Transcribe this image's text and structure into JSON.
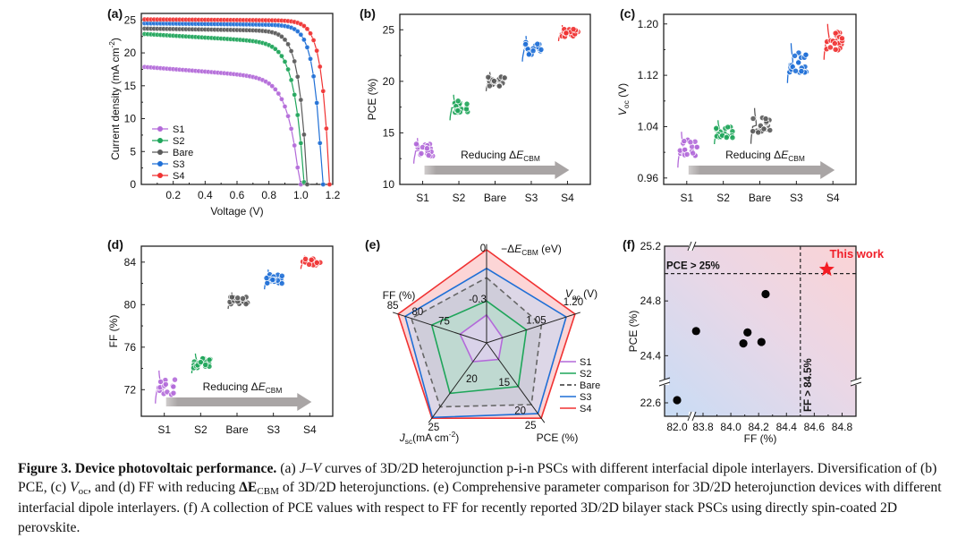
{
  "figure": {
    "caption_runs": [
      {
        "t": "Figure 3. Device photovoltaic performance.",
        "b": true
      },
      {
        "t": " (a) ",
        "b": false
      },
      {
        "t": "J–V",
        "b": false,
        "i": true
      },
      {
        "t": " curves of 3D/2D heterojunction p-i-n PSCs with different interfacial dipole interlayers. Diversification of (b) PCE, (c) ",
        "b": false
      },
      {
        "t": "V",
        "b": false,
        "i": true
      },
      {
        "t": "oc",
        "b": false,
        "sub": true
      },
      {
        "t": ", and (d) FF with reducing ",
        "b": false
      },
      {
        "t": "ΔE",
        "b": true
      },
      {
        "t": "CBM",
        "b": false,
        "sub": true
      },
      {
        "t": " of 3D/2D heterojunctions. (e) Comprehensive parameter comparison for 3D/2D heterojunction devices with different interfacial dipole interlayers. (f) A collection of PCE values with respect to FF for recently reported 3D/2D bilayer stack PSCs using directly spin-coated 2D perovskite.",
        "b": false
      }
    ]
  },
  "colors": {
    "S1": "#b36ad9",
    "S2": "#1fa55a",
    "Bare": "#5a5a5a",
    "S3": "#1f6fd6",
    "S4": "#f03232",
    "arrow": "#a8a4a4"
  },
  "chart_data": [
    {
      "panel": "(a)",
      "type": "line",
      "xlabel": "Voltage (V)",
      "ylabel": "Current density (mA cm⁻²)",
      "xlim": [
        0,
        1.2
      ],
      "ylim": [
        0,
        26
      ],
      "xticks": [
        "0.2",
        "0.4",
        "0.6",
        "0.8",
        "1.0",
        "1.2"
      ],
      "yticks": [
        "0",
        "5",
        "10",
        "15",
        "20",
        "25"
      ],
      "legend": "bottom-left",
      "series": [
        {
          "name": "S1",
          "jsc": 17.9,
          "voc": 1.0,
          "knee": 0.82,
          "slope": 2.6
        },
        {
          "name": "S2",
          "jsc": 22.9,
          "voc": 1.025,
          "knee": 0.84,
          "slope": 1.6
        },
        {
          "name": "Bare",
          "jsc": 23.7,
          "voc": 1.04,
          "knee": 0.88,
          "slope": 0.4
        },
        {
          "name": "S3",
          "jsc": 24.5,
          "voc": 1.135,
          "knee": 0.98,
          "slope": 0.3
        },
        {
          "name": "S4",
          "jsc": 25.1,
          "voc": 1.18,
          "knee": 1.03,
          "slope": 0.2
        }
      ]
    },
    {
      "panel": "(b)",
      "type": "scatter",
      "ylabel": "PCE (%)",
      "categories": [
        "S1",
        "S2",
        "Bare",
        "S3",
        "S4"
      ],
      "ylim": [
        10,
        26.5
      ],
      "yticks": [
        "10",
        "15",
        "20",
        "25"
      ],
      "annotation": "Reducing ΔE",
      "annotation_sub": "CBM",
      "series": [
        {
          "name": "S1",
          "mean": 13.3,
          "spread": 0.8
        },
        {
          "name": "S2",
          "mean": 17.5,
          "spread": 0.8
        },
        {
          "name": "Bare",
          "mean": 20.0,
          "spread": 0.6
        },
        {
          "name": "S3",
          "mean": 23.2,
          "spread": 0.8
        },
        {
          "name": "S4",
          "mean": 24.7,
          "spread": 0.5
        }
      ]
    },
    {
      "panel": "(c)",
      "type": "scatter",
      "ylabel": "V",
      "ylabel_sub": "oc",
      "ylabel_suffix": " (V)",
      "categories": [
        "S1",
        "S2",
        "Bare",
        "S3",
        "S4"
      ],
      "ylim": [
        0.95,
        1.215
      ],
      "yticks": [
        "0.96",
        "1.04",
        "1.12",
        "1.20"
      ],
      "annotation": "Reducing ΔE",
      "annotation_sub": "CBM",
      "series": [
        {
          "name": "S1",
          "mean": 1.005,
          "spread": 0.018
        },
        {
          "name": "S2",
          "mean": 1.032,
          "spread": 0.012
        },
        {
          "name": "Bare",
          "mean": 1.042,
          "spread": 0.018
        },
        {
          "name": "S3",
          "mean": 1.14,
          "spread": 0.02
        },
        {
          "name": "S4",
          "mean": 1.173,
          "spread": 0.018
        }
      ]
    },
    {
      "panel": "(d)",
      "type": "scatter",
      "ylabel": "FF (%)",
      "categories": [
        "S1",
        "S2",
        "Bare",
        "S3",
        "S4"
      ],
      "ylim": [
        69.5,
        85.5
      ],
      "yticks": [
        "72",
        "76",
        "80",
        "84"
      ],
      "annotation": "Reducing ΔE",
      "annotation_sub": "CBM",
      "series": [
        {
          "name": "S1",
          "mean": 72.3,
          "spread": 1.0
        },
        {
          "name": "S2",
          "mean": 74.5,
          "spread": 0.6
        },
        {
          "name": "Bare",
          "mean": 80.4,
          "spread": 0.5
        },
        {
          "name": "S3",
          "mean": 82.4,
          "spread": 0.6
        },
        {
          "name": "S4",
          "mean": 84.0,
          "spread": 0.4
        }
      ]
    },
    {
      "panel": "(e)",
      "type": "radar",
      "axes": [
        {
          "name": "-ΔE",
          "sub": "CBM",
          "suffix": " (eV)",
          "ticks": [
            "0",
            "-0.3"
          ]
        },
        {
          "name": "V",
          "sub": "oc",
          "suffix": " (V)",
          "ticks": [
            "1.20",
            "1.05"
          ]
        },
        {
          "name": "PCE (%)",
          "ticks": [
            "25",
            "20",
            "15"
          ]
        },
        {
          "name": "J",
          "sub": "sc",
          "suffix": "(mA cm⁻²)",
          "ticks": [
            "25",
            "20"
          ]
        },
        {
          "name": "FF (%)",
          "ticks": [
            "85",
            "80",
            "75"
          ]
        }
      ],
      "legend": "right",
      "series": [
        {
          "name": "S1",
          "values": [
            0.3,
            0.18,
            0.22,
            0.25,
            0.3
          ],
          "style": "solid"
        },
        {
          "name": "S2",
          "values": [
            0.45,
            0.45,
            0.58,
            0.67,
            0.62
          ],
          "style": "solid"
        },
        {
          "name": "Bare",
          "values": [
            0.7,
            0.62,
            0.82,
            0.85,
            0.85
          ],
          "style": "dashed"
        },
        {
          "name": "S3",
          "values": [
            0.8,
            0.9,
            0.94,
            0.99,
            0.92
          ],
          "style": "solid"
        },
        {
          "name": "S4",
          "values": [
            1.0,
            1.0,
            1.0,
            1.0,
            1.0
          ],
          "style": "solid"
        }
      ]
    },
    {
      "panel": "(f)",
      "type": "scatter",
      "xlabel": "FF (%)",
      "ylabel": "PCE (%)",
      "xticks": [
        "82.0",
        "83.8",
        "84.0",
        "84.2",
        "84.4",
        "84.6",
        "84.8"
      ],
      "yticks": [
        "22.6",
        "24.4",
        "24.8",
        "25.2"
      ],
      "axis_breaks": true,
      "threshold_pce_label": "PCE > 25%",
      "threshold_ff_label": "FF > 84.5%",
      "highlight_label": "This work",
      "points": [
        {
          "ff": 82.0,
          "pce": 22.65
        },
        {
          "ff": 83.75,
          "pce": 24.58
        },
        {
          "ff": 84.09,
          "pce": 24.49
        },
        {
          "ff": 84.12,
          "pce": 24.57
        },
        {
          "ff": 84.22,
          "pce": 24.5
        },
        {
          "ff": 84.25,
          "pce": 24.85
        }
      ],
      "highlight": {
        "ff": 84.69,
        "pce": 25.03
      },
      "threshold_pce": 25.0,
      "threshold_ff": 84.5
    }
  ]
}
